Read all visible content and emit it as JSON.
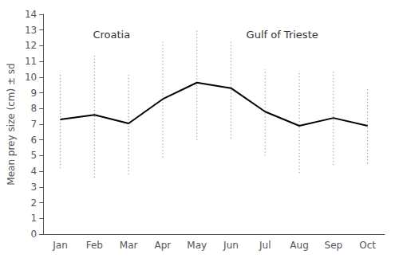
{
  "chart_data": {
    "type": "line",
    "categories": [
      "Jan",
      "Feb",
      "Mar",
      "Apr",
      "May",
      "Jun",
      "Jul",
      "Aug",
      "Sep",
      "Oct"
    ],
    "values": [
      7.3,
      7.6,
      7.05,
      8.6,
      9.65,
      9.3,
      7.8,
      6.9,
      7.4,
      6.9
    ],
    "color": "#000000",
    "marker": "none",
    "line_style": "solid",
    "error_bars": {
      "lower": [
        4.2,
        3.6,
        3.8,
        4.9,
        6.0,
        6.1,
        5.0,
        3.9,
        4.4,
        4.5
      ],
      "upper": [
        10.3,
        11.5,
        10.2,
        12.3,
        13.0,
        12.3,
        10.5,
        10.4,
        10.4,
        9.3
      ],
      "color": "#777777",
      "line_style": "dotted"
    },
    "ylabel": "Mean prey size (cm) ± sd",
    "ylim": [
      0,
      14
    ],
    "yticks": [
      0,
      1,
      2,
      3,
      4,
      5,
      6,
      7,
      8,
      9,
      10,
      11,
      12,
      13,
      14
    ],
    "grid": false,
    "annotations": [
      {
        "text": "Croatia",
        "x": 1.5,
        "y": 12.7
      },
      {
        "text": "Gulf of Trieste",
        "x": 6.5,
        "y": 12.7
      }
    ]
  }
}
